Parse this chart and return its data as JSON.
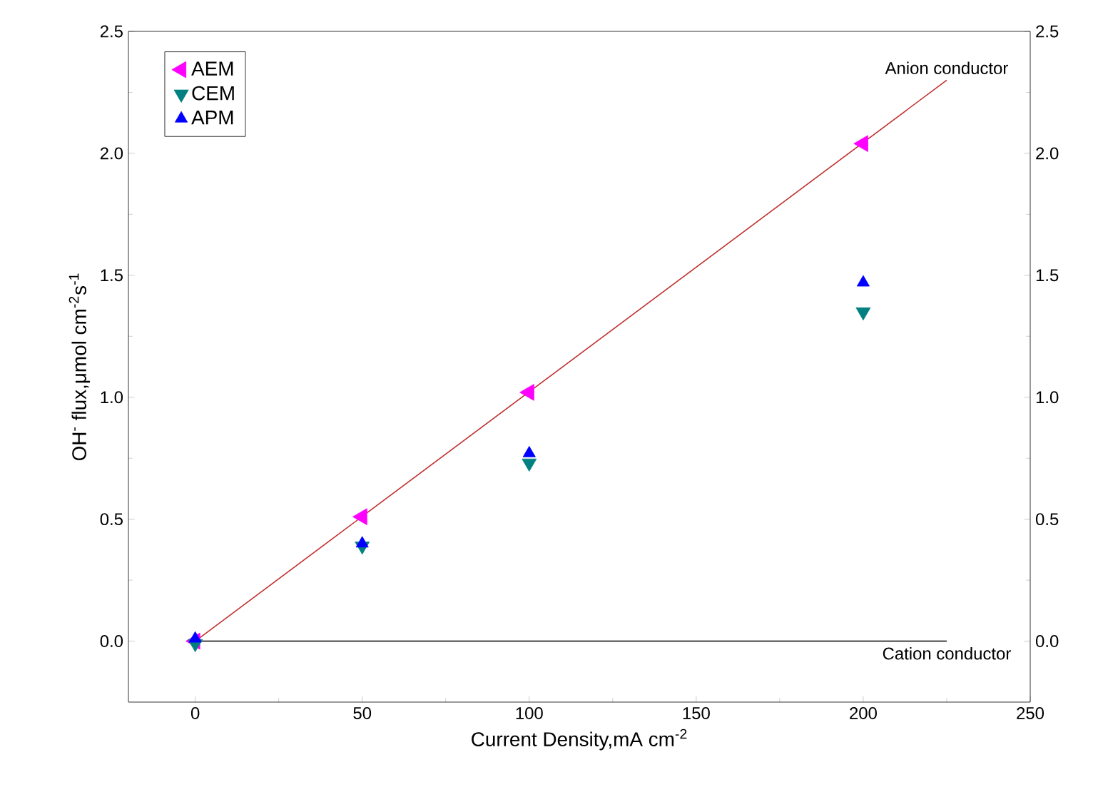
{
  "chart_data": {
    "type": "scatter",
    "xlabel": "Current Density,mA cm$^{-2}$",
    "ylabel": "OH$^{-}$ flux,μmol cm$^{-2}$s$^{-1}$",
    "xlim": [
      -20,
      250
    ],
    "xticks": [
      0,
      50,
      100,
      150,
      200,
      250
    ],
    "ylim": [
      -0.25,
      2.5
    ],
    "yticks": [
      {
        "value": 0,
        "label": "0.0"
      },
      {
        "value": 0.5,
        "label": "0.5"
      },
      {
        "value": 1,
        "label": "1.0"
      },
      {
        "value": 1.5,
        "label": "1.5"
      },
      {
        "value": 2,
        "label": "2.0"
      },
      {
        "value": 2.5,
        "label": "2.5"
      }
    ],
    "y2lim": [
      -0.25,
      2.5
    ],
    "y2ticks": [
      {
        "value": 0,
        "label": "0.0"
      },
      {
        "value": 0.5,
        "label": "0.5"
      },
      {
        "value": 1,
        "label": "1.0"
      },
      {
        "value": 1.5,
        "label": "1.5"
      },
      {
        "value": 2,
        "label": "2.0"
      },
      {
        "value": 2.5,
        "label": "2.5"
      }
    ],
    "legend": "top left",
    "grid": false,
    "series": [
      {
        "type": "line",
        "name": "Anion conductor",
        "color": "#c03030",
        "x": [
          0,
          225
        ],
        "values": [
          0,
          2.3
        ],
        "marker": "none"
      },
      {
        "type": "line",
        "name": "Cation conductor",
        "color": "#000000",
        "x": [
          0,
          225
        ],
        "values": [
          0,
          0
        ],
        "marker": "none"
      },
      {
        "name": "AEM",
        "color": "#ff00ff",
        "marker": "triangle-left",
        "x": [
          0,
          50,
          100,
          200
        ],
        "values": [
          0,
          0.51,
          1.02,
          2.04
        ]
      },
      {
        "name": "CEM",
        "color": "#008080",
        "marker": "triangle-down",
        "x": [
          0,
          50,
          100,
          200
        ],
        "values": [
          -0.01,
          0.39,
          0.73,
          1.35
        ]
      },
      {
        "name": "APM",
        "color": "#0000ff",
        "marker": "triangle",
        "x": [
          0,
          50,
          100,
          200
        ],
        "values": [
          0.01,
          0.4,
          0.77,
          1.47
        ]
      }
    ]
  }
}
